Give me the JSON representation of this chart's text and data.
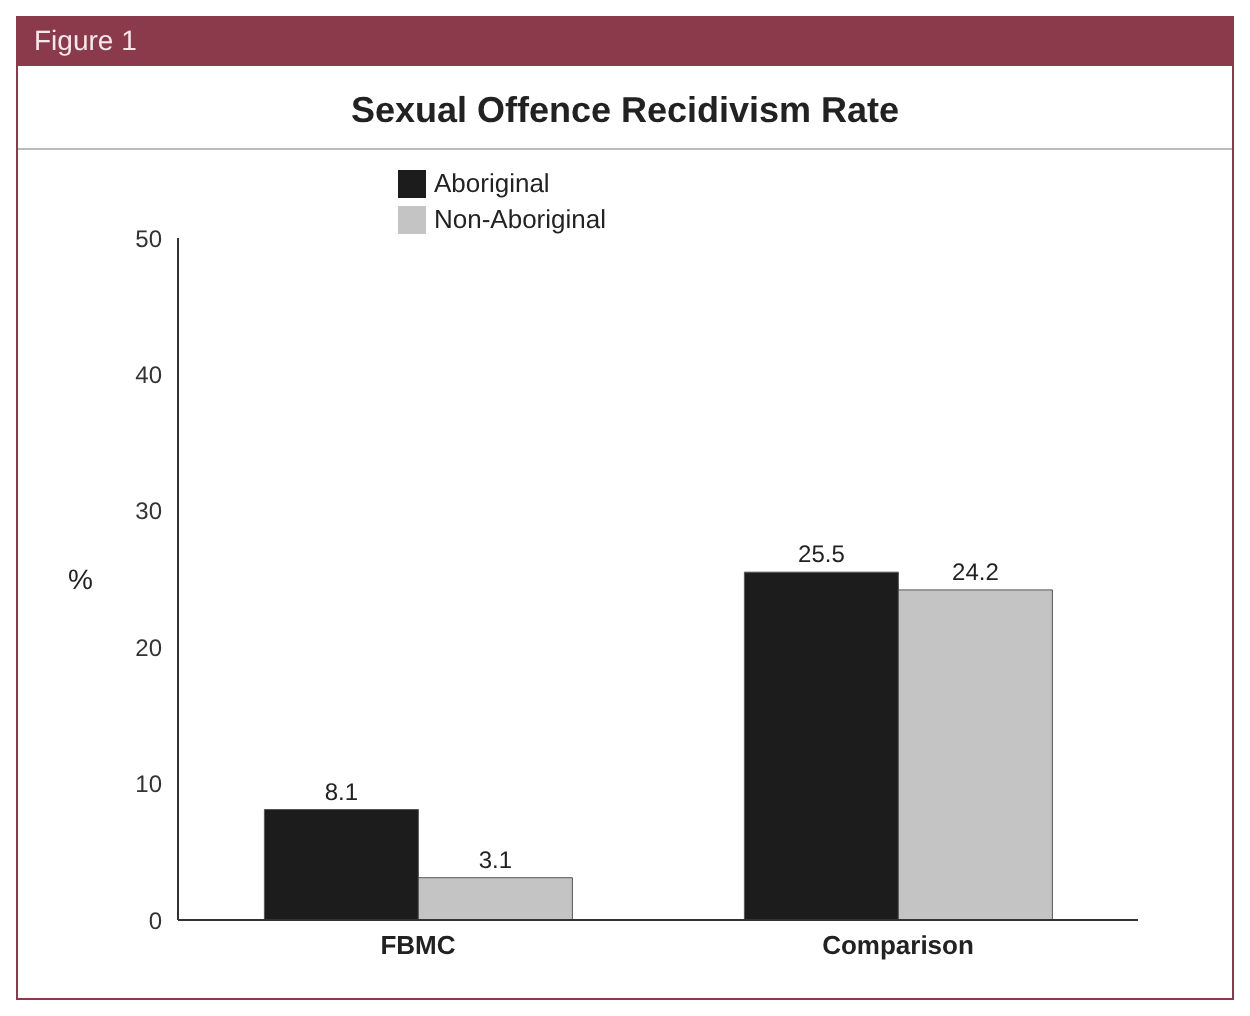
{
  "chart_data": {
    "type": "bar",
    "title": "Sexual Offence Recidivism Rate",
    "annotations": [
      "Figure 1"
    ],
    "ylabel": "%",
    "categories": [
      "FBMC",
      "Comparison"
    ],
    "series": [
      {
        "name": "Aboriginal",
        "color": "#1c1c1c",
        "values": [
          8.1,
          25.5
        ]
      },
      {
        "name": "Non-Aboriginal",
        "color": "#c4c4c4",
        "values": [
          3.1,
          24.2
        ]
      }
    ],
    "ylim": [
      0,
      50
    ],
    "yticks": [
      0,
      10,
      20,
      30,
      40,
      50
    ],
    "grid": false,
    "legend": "top left",
    "data_labels": true
  }
}
